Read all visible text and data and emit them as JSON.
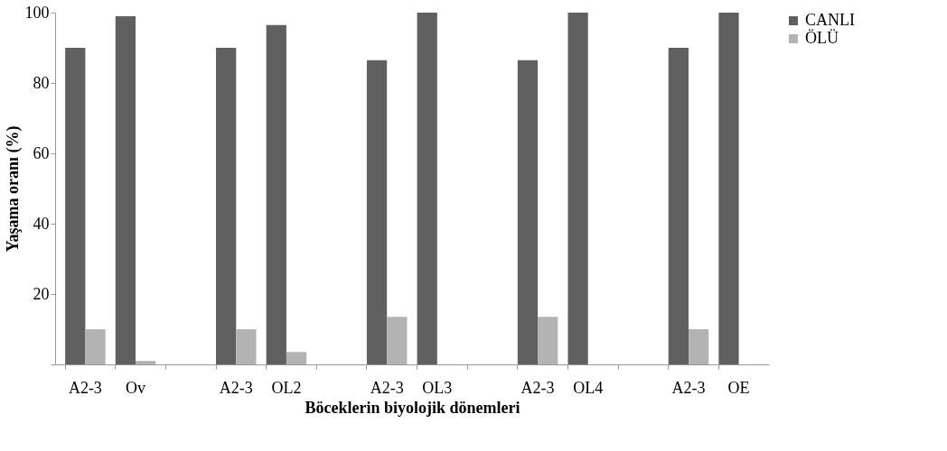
{
  "chart_data": {
    "type": "bar",
    "xlabel": "Böceklerin biyolojik dönemleri",
    "ylabel": "Yaşama oranı (%)",
    "categories": [
      "A2-3",
      "Ov",
      null,
      "A2-3",
      "OL2",
      null,
      "A2-3",
      "OL3",
      null,
      "A2-3",
      "OL4",
      null,
      "A2-3",
      "OE"
    ],
    "series": [
      {
        "name": "CANLI",
        "color": "#606060",
        "values": [
          90,
          99,
          null,
          90,
          96.5,
          null,
          86.5,
          100,
          null,
          86.5,
          100,
          null,
          90,
          100
        ]
      },
      {
        "name": "ÖLÜ",
        "color": "#b3b3b3",
        "values": [
          10,
          1,
          null,
          10,
          3.5,
          null,
          13.5,
          0,
          null,
          13.5,
          0,
          null,
          10,
          0
        ]
      }
    ],
    "ylim": [
      0,
      100
    ],
    "yticks": [
      {
        "value": 0,
        "label": null
      },
      20,
      40,
      60,
      80,
      100
    ],
    "grid": false,
    "legend": "right"
  }
}
